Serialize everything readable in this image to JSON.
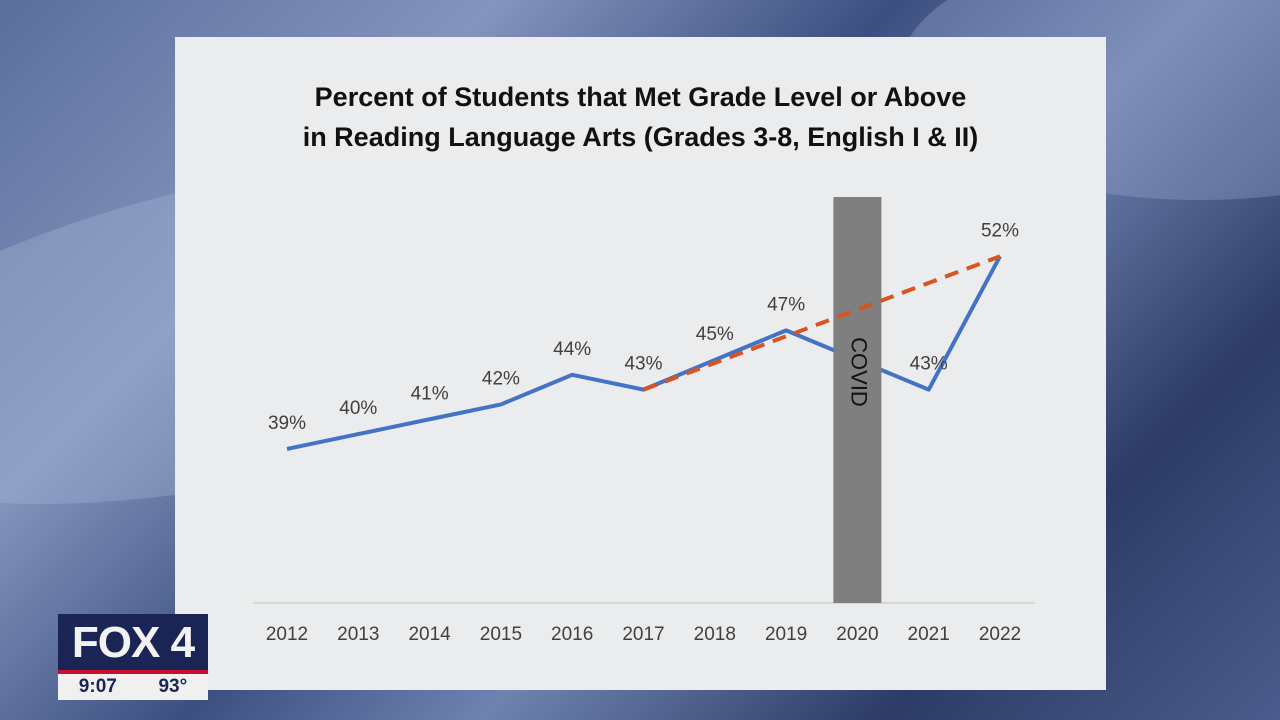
{
  "chart_data": {
    "type": "line",
    "title": "Percent of Students that Met Grade Level or Above in Reading Language Arts (Grades 3-8, English I & II)",
    "title_lines": [
      "Percent of Students that Met Grade Level or Above",
      "in Reading Language Arts (Grades 3-8, English I & II)"
    ],
    "categories": [
      "2012",
      "2013",
      "2014",
      "2015",
      "2016",
      "2017",
      "2018",
      "2019",
      "2020",
      "2021",
      "2022"
    ],
    "series": [
      {
        "values": [
          39,
          40,
          41,
          42,
          44,
          43,
          45,
          47,
          null,
          43,
          52
        ],
        "labels": [
          "39%",
          "40%",
          "41%",
          "42%",
          "44%",
          "43%",
          "45%",
          "47%",
          "",
          "43%",
          "52%"
        ],
        "color": "#4472c4",
        "style": "solid"
      },
      {
        "values": [
          null,
          null,
          null,
          null,
          null,
          43,
          null,
          null,
          null,
          null,
          52
        ],
        "color": "#d9541e",
        "style": "dashed"
      }
    ],
    "annotations": [
      {
        "category": "2020",
        "label": "COVID",
        "color": "#7f7f7f"
      }
    ],
    "ylim": [
      28.6,
      56
    ],
    "grid": false,
    "legend": "none"
  },
  "broadcast": {
    "logo": "FOX 4",
    "time": "9:07",
    "temperature": "93°",
    "brand_color": "#1a2556",
    "accent_color": "#c8102e"
  }
}
